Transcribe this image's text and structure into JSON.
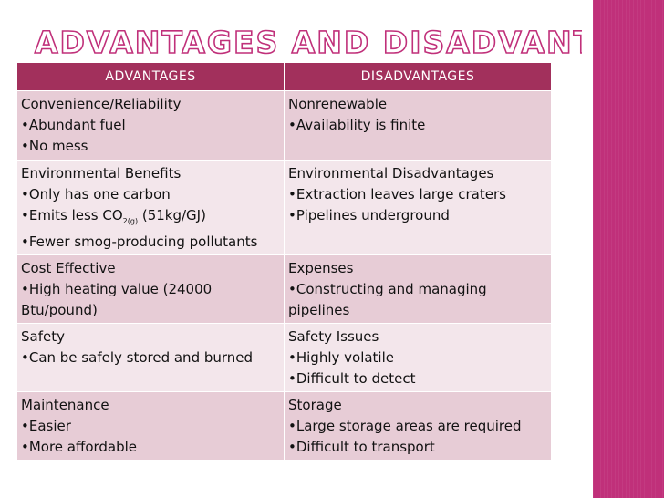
{
  "title": "ADVANTAGES AND DISADVANTAGES",
  "colors": {
    "accent_band": "#c0307a",
    "header_bg": "#a2305c",
    "row_dark": "#e7ccd6",
    "row_light": "#f3e6eb"
  },
  "table": {
    "headers": [
      "ADVANTAGES",
      "DISADVANTAGES"
    ],
    "rows": [
      {
        "adv": [
          "Convenience/Reliability",
          "•Abundant fuel",
          "•No mess"
        ],
        "dis": [
          "Nonrenewable",
          "•Availability is finite"
        ]
      },
      {
        "adv_title": "Environmental Benefits",
        "adv_line1": "•Only has one carbon",
        "adv_emit_pre": "•Emits less CO",
        "adv_emit_sub": "2(g)",
        "adv_emit_post": " (51kg/GJ)",
        "adv_line3": "•Fewer smog-producing pollutants",
        "dis": [
          "Environmental Disadvantages",
          "•Extraction leaves large craters",
          "•Pipelines underground"
        ]
      },
      {
        "adv": [
          "Cost Effective",
          "•High heating value (24000",
          "Btu/pound)"
        ],
        "dis": [
          "Expenses",
          "•Constructing and managing",
          "pipelines"
        ]
      },
      {
        "adv": [
          "Safety",
          "•Can be safely stored and burned"
        ],
        "dis": [
          "Safety Issues",
          "•Highly volatile",
          "•Difficult to detect"
        ]
      },
      {
        "adv": [
          "Maintenance",
          "•Easier",
          "•More affordable"
        ],
        "dis": [
          "Storage",
          "•Large storage areas are required",
          "•Difficult to transport"
        ]
      }
    ]
  }
}
